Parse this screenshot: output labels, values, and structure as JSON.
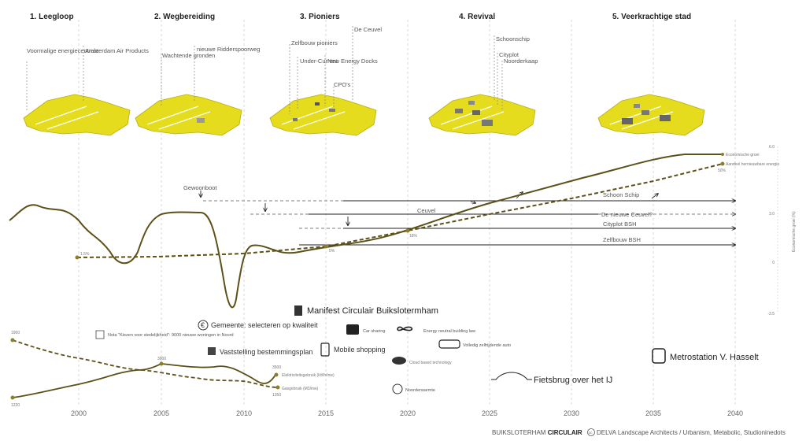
{
  "colors": {
    "accent": "#e6dc1e",
    "line": "#5b5119",
    "grid": "#c8c8c8",
    "marker": "#8a7f2a"
  },
  "phases": [
    {
      "label": "1. Leegloop"
    },
    {
      "label": "2. Wegbereiding"
    },
    {
      "label": "3. Pioniers"
    },
    {
      "label": "4. Revival"
    },
    {
      "label": "5. Veerkrachtige stad"
    }
  ],
  "top_labels": {
    "voormalige": "Voormalige energiecentrale",
    "amsterdam": "Amsterdam Air Products",
    "wachtende": "Wachtende gronden",
    "nieuwe": "nieuwe Ridderspoorweg",
    "zelfbouw": "Zelfbouw pioniers",
    "undercurrent": "Under-Current",
    "newenergy": "New Energy Docks",
    "cpo": "CPO's",
    "deceuvel": "De Ceuvel",
    "schoonschip": "Schoonschip",
    "cityplot": "Cityplot",
    "noorderkaap": "Noorderkaap"
  },
  "projects": {
    "gewoonboot": "Gewoonboot",
    "schoonschip": "Schoon Schip",
    "ceuvel": "Ceuvel",
    "nieuwe_ceuvel": "De nieuwe Ceuvel?",
    "cityplot": "Cityplot BSH",
    "zelfbouw": "Zelfbouw BSH"
  },
  "growth": {
    "econ_label": "Economische groei",
    "renew_label": "Aandeel hernieuwbare energie",
    "pct_start": "1.5%",
    "pct_2015": "5%",
    "pct_2020": "18%",
    "pct_2040": "50%"
  },
  "right_axis": {
    "title": "Economische groei (%)",
    "ticks": [
      "6.0",
      "3.0",
      "0",
      "-3.5"
    ]
  },
  "events": {
    "manifest": "Manifest Circulair Buikslotermham",
    "gemeente": "Gemeente: selecteren op kwaliteit",
    "nota": "Nota \"Kiezen voor stedelijkheid\": 9000 nieuwe woningen in Noord",
    "vaststelling": "Vaststelling bestemmingsplan",
    "mobile": "Mobile shopping",
    "carsharing": "Car sharing",
    "energyneutral": "Energy neutral building law",
    "zelfrijdende": "Volledig zelfrijdende auto",
    "cloud": "Cloud based technology",
    "noorderwarmte": "Noorderwarmte",
    "fietsbrug": "Fietsbrug over het IJ",
    "metro": "Metrostation V. Hasselt"
  },
  "consumption": {
    "elec_label": "Elektriciteitsgebruik (kWh/inw)",
    "gas_label": "Gasgebruik (M3/inw)",
    "v1900": "1900",
    "v1220": "1220",
    "v3900": "3900",
    "v3500": "3500",
    "v1350": "1350"
  },
  "x_axis": [
    "2000",
    "2005",
    "2010",
    "2015",
    "2020",
    "2025",
    "2030",
    "2035",
    "2040"
  ],
  "footer": {
    "prefix": "BUIKSLOTERHAM ",
    "bold": "CIRCULAIR",
    "cc": "cc",
    "credits": "DELVA Landscape Architects / Urbanism, Metabolic, Studioninedots"
  }
}
